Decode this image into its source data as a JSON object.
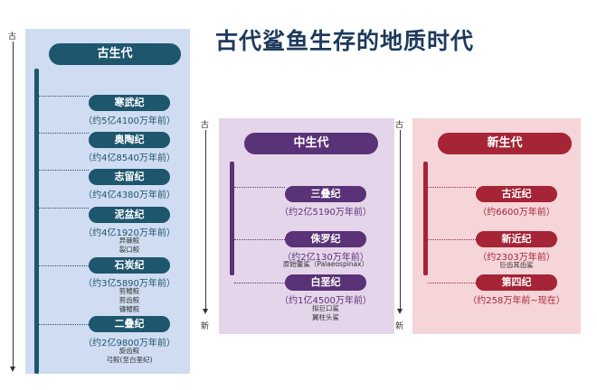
{
  "title": "古代鲨鱼生存的地质时代",
  "axis": {
    "old": "古",
    "new": "新"
  },
  "colors": {
    "paleozoic": "#1e566e",
    "mesozoic": "#5a3277",
    "cenozoic": "#a52436"
  },
  "paleozoic": {
    "name": "古生代",
    "periods": [
      {
        "name": "寒武纪",
        "age": "（约5亿4100万年前）",
        "notes": []
      },
      {
        "name": "奥陶纪",
        "age": "（约4亿8540万年前）",
        "notes": []
      },
      {
        "name": "志留纪",
        "age": "（约4亿4380万年前）",
        "notes": []
      },
      {
        "name": "泥盆纪",
        "age": "（约4亿1920万年前）",
        "notes": [
          "异棘鲛",
          "裂口鲛"
        ]
      },
      {
        "name": "石炭纪",
        "age": "（约3亿5890万年前）",
        "notes": [
          "剪鳍鲛",
          "剪齿鲛",
          "镰鳍鲛"
        ]
      },
      {
        "name": "二叠纪",
        "age": "（约2亿9800万年前）",
        "notes": [
          "旋齿鲛",
          "弓鲛(至白垩纪)"
        ]
      }
    ]
  },
  "mesozoic": {
    "name": "中生代",
    "periods": [
      {
        "name": "三叠纪",
        "age": "（约2亿5190万年前）",
        "notes": []
      },
      {
        "name": "侏罗纪",
        "age": "（约2亿130万年前）",
        "notes": [
          "原始鳖鲨（Palaeospinax）"
        ]
      },
      {
        "name": "白垩纪",
        "age": "（约1亿4500万年前）",
        "notes": [
          "拟巨口鲨",
          "翼柱头鲨"
        ]
      }
    ]
  },
  "cenozoic": {
    "name": "新生代",
    "periods": [
      {
        "name": "古近纪",
        "age": "（约6600万年前）",
        "notes": []
      },
      {
        "name": "新近纪",
        "age": "（约2303万年前）",
        "notes": [
          "巨齿耳齿鲨"
        ]
      },
      {
        "name": "第四纪",
        "age": "（约258万年前~现在）",
        "notes": []
      }
    ]
  }
}
